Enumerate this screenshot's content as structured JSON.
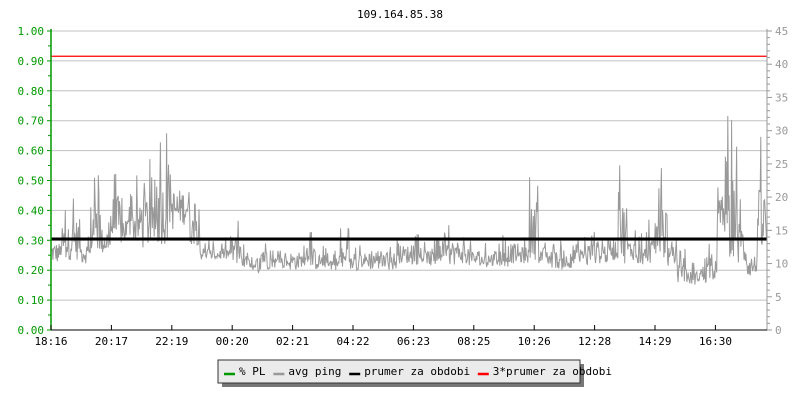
{
  "chart_data": {
    "type": "line",
    "title": "109.164.85.38",
    "x_tick_labels": [
      "18:16",
      "20:17",
      "22:19",
      "00:20",
      "02:21",
      "04:22",
      "06:23",
      "08:25",
      "10:26",
      "12:28",
      "14:29",
      "16:30"
    ],
    "y_left": {
      "ylim": [
        0,
        1
      ],
      "tick_labels": [
        "0.00",
        "0.10",
        "0.20",
        "0.30",
        "0.40",
        "0.50",
        "0.60",
        "0.70",
        "0.80",
        "0.90",
        "1.00"
      ],
      "color": "#009900"
    },
    "y_right": {
      "ylim": [
        0,
        45
      ],
      "tick_labels": [
        "0",
        "5",
        "10",
        "15",
        "20",
        "25",
        "30",
        "35",
        "40",
        "45"
      ],
      "color": "#999999"
    },
    "grid": true,
    "legend_placement": "bottom",
    "legend": [
      {
        "label": "% PL",
        "color": "#009900"
      },
      {
        "label": "avg ping",
        "color": "#999999"
      },
      {
        "label": "prumer za obdobi",
        "color": "#000000"
      },
      {
        "label": "3*prumer za obdobi",
        "color": "#ff0000"
      }
    ],
    "series": [
      {
        "name": "avg ping",
        "axis": "right",
        "color": "#999999",
        "ranges_ms": [
          [
            10,
            15.8
          ],
          [
            10.5,
            19.5
          ],
          [
            10.5,
            21.8
          ],
          [
            10,
            15.8
          ],
          [
            11.3,
            25.5
          ],
          [
            11.3,
            18.8
          ],
          [
            12,
            27
          ],
          [
            12.8,
            21
          ],
          [
            12.8,
            23.3
          ],
          [
            12,
            27.8
          ],
          [
            12.8,
            23.3
          ],
          [
            12.8,
            30.3
          ],
          [
            15,
            26.3
          ],
          [
            15.8,
            25.5
          ],
          [
            12.8,
            21
          ],
          [
            10.5,
            14
          ],
          [
            10.5,
            13.5
          ],
          [
            10.5,
            14
          ],
          [
            9.8,
            18
          ],
          [
            9,
            13
          ],
          [
            8.5,
            11
          ],
          [
            9,
            17.3
          ],
          [
            9.3,
            12.5
          ],
          [
            9.3,
            12.5
          ],
          [
            9,
            14
          ],
          [
            9.5,
            13
          ],
          [
            9,
            15
          ],
          [
            9.3,
            13
          ],
          [
            9,
            12.5
          ],
          [
            8.8,
            15.5
          ],
          [
            9,
            12.5
          ],
          [
            9.3,
            13.5
          ],
          [
            9,
            15
          ],
          [
            9.5,
            12.8
          ],
          [
            9,
            14
          ],
          [
            10,
            15
          ],
          [
            9.8,
            14.5
          ],
          [
            10,
            13.5
          ],
          [
            9.5,
            14.5
          ],
          [
            10,
            15
          ],
          [
            9.8,
            16.5
          ],
          [
            10,
            15.5
          ],
          [
            9.5,
            14
          ],
          [
            9.3,
            13.5
          ],
          [
            9.5,
            13.5
          ],
          [
            9.5,
            14.5
          ],
          [
            10,
            15.5
          ],
          [
            10,
            14.5
          ],
          [
            10.5,
            25
          ],
          [
            10,
            14.5
          ],
          [
            9.3,
            14
          ],
          [
            9,
            13.5
          ],
          [
            9.3,
            16
          ],
          [
            9.5,
            14.5
          ],
          [
            9.8,
            16
          ],
          [
            10,
            15.5
          ],
          [
            10.5,
            16.5
          ],
          [
            10,
            27
          ],
          [
            10.5,
            16
          ],
          [
            9.8,
            15
          ],
          [
            10,
            17
          ],
          [
            10,
            28.3
          ],
          [
            9.5,
            15
          ],
          [
            7,
            12.5
          ],
          [
            6.8,
            10.5
          ],
          [
            7,
            12
          ],
          [
            7.5,
            13
          ],
          [
            13,
            26.5
          ],
          [
            11,
            32.5
          ],
          [
            9,
            22
          ],
          [
            8,
            14
          ],
          [
            10.5,
            30
          ]
        ]
      },
      {
        "name": "prumer za obdobi",
        "axis": "right",
        "color": "#000000",
        "value": 13.7
      },
      {
        "name": "3*prumer za obdobi",
        "axis": "right",
        "color": "#ff0000",
        "value": 41.2
      }
    ]
  }
}
